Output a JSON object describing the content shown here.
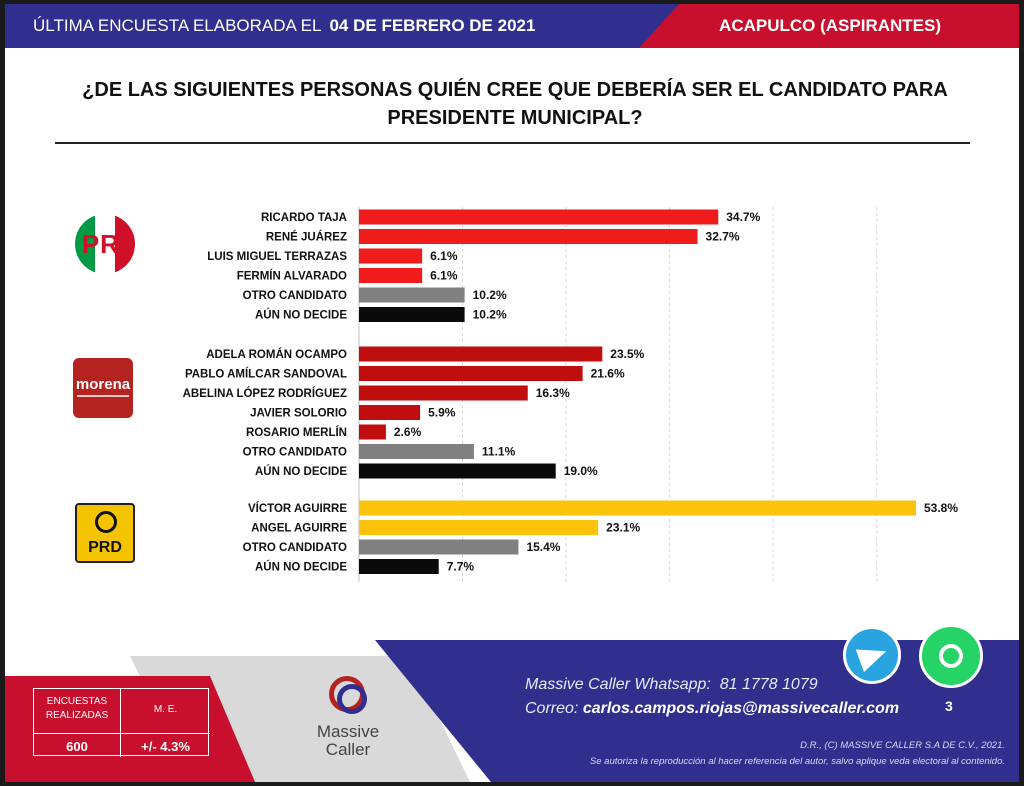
{
  "header": {
    "survey_label": "ÚLTIMA ENCUESTA ELABORADA EL",
    "date": "04 DE FEBRERO DE 2021",
    "region": "ACAPULCO (ASPIRANTES)"
  },
  "question_line1": "¿DE LAS SIGUIENTES PERSONAS QUIÉN CREE QUE DEBERÍA SER EL CANDIDATO PARA",
  "question_line2": "PRESIDENTE MUNICIPAL?",
  "logos": {
    "pri": "PRI",
    "morena": "morena",
    "prd": "PRD"
  },
  "colors": {
    "pri": "#f01b1b",
    "morena": "#c00d0d",
    "prd": "#fcc30d",
    "otro": "#808080",
    "no_decide": "#0a0a0a"
  },
  "chart_data": {
    "type": "bar",
    "orientation": "horizontal",
    "xlim": [
      0,
      55
    ],
    "grid": true,
    "value_suffix": "%",
    "groups": [
      {
        "party": "PRI",
        "bars": [
          {
            "label": "RICARDO TAJA",
            "value": 34.7,
            "color_key": "pri"
          },
          {
            "label": "RENÉ JUÁREZ",
            "value": 32.7,
            "color_key": "pri"
          },
          {
            "label": "LUIS MIGUEL TERRAZAS",
            "value": 6.1,
            "color_key": "pri"
          },
          {
            "label": "FERMÍN ALVARADO",
            "value": 6.1,
            "color_key": "pri"
          },
          {
            "label": "OTRO CANDIDATO",
            "value": 10.2,
            "color_key": "otro"
          },
          {
            "label": "AÚN NO DECIDE",
            "value": 10.2,
            "color_key": "no_decide"
          }
        ]
      },
      {
        "party": "MORENA",
        "bars": [
          {
            "label": "ADELA ROMÁN OCAMPO",
            "value": 23.5,
            "color_key": "morena"
          },
          {
            "label": "PABLO AMÍLCAR SANDOVAL",
            "value": 21.6,
            "color_key": "morena"
          },
          {
            "label": "ABELINA LÓPEZ RODRÍGUEZ",
            "value": 16.3,
            "color_key": "morena"
          },
          {
            "label": "JAVIER SOLORIO",
            "value": 5.9,
            "color_key": "morena"
          },
          {
            "label": "ROSARIO MERLÍN",
            "value": 2.6,
            "color_key": "morena"
          },
          {
            "label": "OTRO CANDIDATO",
            "value": 11.1,
            "color_key": "otro"
          },
          {
            "label": "AÚN NO DECIDE",
            "value": 19.0,
            "color_key": "no_decide"
          }
        ]
      },
      {
        "party": "PRD",
        "bars": [
          {
            "label": "VÍCTOR AGUIRRE",
            "value": 53.8,
            "color_key": "prd"
          },
          {
            "label": "ANGEL AGUIRRE",
            "value": 23.1,
            "color_key": "prd"
          },
          {
            "label": "OTRO CANDIDATO",
            "value": 15.4,
            "color_key": "otro"
          },
          {
            "label": "AÚN NO DECIDE",
            "value": 7.7,
            "color_key": "no_decide"
          }
        ]
      }
    ]
  },
  "footer": {
    "encuestas_label": "ENCUESTAS REALIZADAS",
    "encuestas_value": "600",
    "me_label": "M. E.",
    "me_value": "+/- 4.3%",
    "brand_line1": "Massive",
    "brand_line2": "Caller",
    "whatsapp_label": "Massive Caller Whatsapp:",
    "whatsapp_number": "81 1778 1079",
    "email_label": "Correo:",
    "email": "carlos.campos.riojas@massivecaller.com",
    "legal1": "D.R., (C) MASSIVE CALLER S.A DE C.V., 2021.",
    "legal2": "Se autoriza la reproducción al hacer referencia del autor, salvo aplique veda electoral al contenido.",
    "page_number": "3"
  }
}
